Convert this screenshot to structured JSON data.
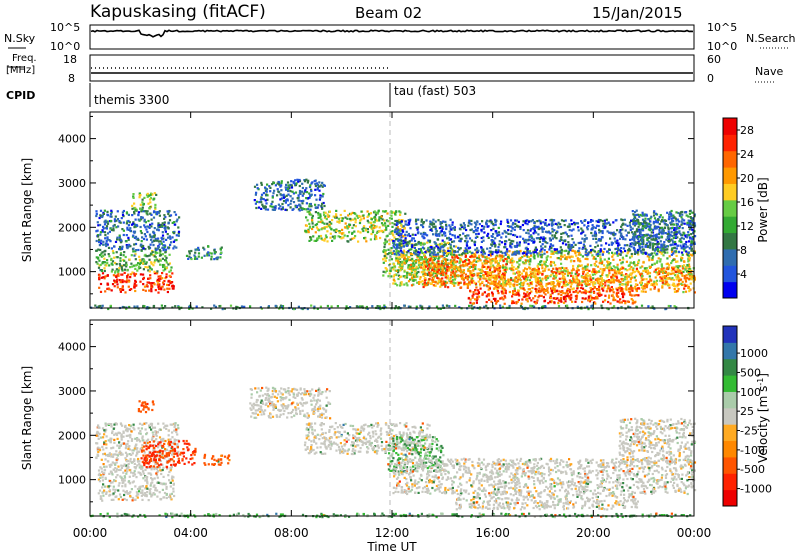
{
  "header": {
    "station": "Kapuskasing (fitACF)",
    "beam": "Beam 02",
    "date": "15/Jan/2015"
  },
  "side_labels": {
    "nsky": "N.Sky",
    "freq_line1": "Freq.",
    "freq_line2": "[MHz]",
    "cpid": "CPID",
    "nsearch": "N.Search",
    "nave": "Nave"
  },
  "noise_panel": {
    "left_ticks": [
      "10^5",
      "10^0"
    ],
    "right_ticks": [
      "10^5",
      "10^0"
    ]
  },
  "freq_panel": {
    "left_ticks": [
      "18",
      "8"
    ],
    "right_ticks": [
      "60",
      "0"
    ]
  },
  "cpid_panel": {
    "modes": [
      {
        "name": "themis 3300",
        "start_hour": 0
      },
      {
        "name": "tau (fast) 503",
        "start_hour": 12
      }
    ]
  },
  "chart_data": [
    {
      "type": "heatmap",
      "title": "Power",
      "xlabel": "Time UT",
      "ylabel": "Slant Range [km]",
      "x_ticks": [
        "00:00",
        "04:00",
        "08:00",
        "12:00",
        "16:00",
        "20:00",
        "00:00"
      ],
      "y_ticks": [
        "1000",
        "2000",
        "3000",
        "4000"
      ],
      "xlim_hours": [
        0,
        24
      ],
      "ylim_km": [
        180,
        4600
      ],
      "colorbar": {
        "label": "Power [dB]",
        "ticks": [
          "4",
          "8",
          "12",
          "16",
          "20",
          "24",
          "28"
        ],
        "range": [
          0,
          30
        ],
        "colors": [
          "#0000ee",
          "#2255dd",
          "#2f6db0",
          "#337744",
          "#33aa33",
          "#66cc44",
          "#ffcc22",
          "#ff9900",
          "#ff6600",
          "#ff2200",
          "#ee0000"
        ]
      },
      "regions": [
        {
          "t0": 0.3,
          "t1": 3.3,
          "r0": 550,
          "r1": 1000,
          "p": 26
        },
        {
          "t0": 0.2,
          "t1": 3.2,
          "r0": 1000,
          "r1": 1500,
          "p": 13
        },
        {
          "t0": 0.2,
          "t1": 3.5,
          "r0": 1500,
          "r1": 2400,
          "p": 7
        },
        {
          "t0": 1.6,
          "t1": 2.6,
          "r0": 2400,
          "r1": 2800,
          "p": 14
        },
        {
          "t0": 3.8,
          "t1": 5.2,
          "r0": 1300,
          "r1": 1600,
          "p": 9
        },
        {
          "t0": 6.5,
          "t1": 9.3,
          "r0": 2400,
          "r1": 3100,
          "p": 7
        },
        {
          "t0": 8.5,
          "t1": 12.5,
          "r0": 1700,
          "r1": 2400,
          "p": 15
        },
        {
          "t0": 11.6,
          "t1": 14.5,
          "r0": 900,
          "r1": 1700,
          "p": 14
        },
        {
          "t0": 12.0,
          "t1": 24.0,
          "r0": 700,
          "r1": 1500,
          "p": 17
        },
        {
          "t0": 13.2,
          "t1": 16.5,
          "r0": 650,
          "r1": 1400,
          "p": 22
        },
        {
          "t0": 16.0,
          "t1": 24.0,
          "r0": 550,
          "r1": 1100,
          "p": 21
        },
        {
          "t0": 15.0,
          "t1": 21.8,
          "r0": 300,
          "r1": 650,
          "p": 25
        },
        {
          "t0": 12.0,
          "t1": 24.0,
          "r0": 1400,
          "r1": 2200,
          "p": 6
        },
        {
          "t0": 21.5,
          "t1": 24.0,
          "r0": 1500,
          "r1": 2400,
          "p": 8
        },
        {
          "t0": 0.0,
          "t1": 24.0,
          "r0": 180,
          "r1": 260,
          "p": 10
        }
      ]
    },
    {
      "type": "heatmap",
      "title": "Velocity",
      "xlabel": "Time UT",
      "ylabel": "Slant Range [km]",
      "x_ticks": [
        "00:00",
        "04:00",
        "08:00",
        "12:00",
        "16:00",
        "20:00",
        "00:00"
      ],
      "y_ticks": [
        "1000",
        "2000",
        "3000",
        "4000"
      ],
      "xlim_hours": [
        0,
        24
      ],
      "ylim_km": [
        180,
        4600
      ],
      "colorbar": {
        "label": "Velocity [m s^-1]",
        "ticks": [
          "1000",
          "500",
          "100",
          "25",
          "-25",
          "-100",
          "-500",
          "-1000"
        ],
        "colors": [
          "#2233bb",
          "#3377aa",
          "#338844",
          "#33bb33",
          "#aaccaa",
          "#c8c8c0",
          "#ffaa22",
          "#ff8800",
          "#ff5500",
          "#ff2200",
          "#ee0000"
        ]
      },
      "regions": [
        {
          "t0": 0.3,
          "t1": 3.3,
          "r0": 550,
          "r1": 1500,
          "v": 0
        },
        {
          "t0": 0.2,
          "t1": 3.5,
          "r0": 1500,
          "r1": 2300,
          "v": 0
        },
        {
          "t0": 2.0,
          "t1": 4.2,
          "r0": 1300,
          "r1": 1900,
          "v": -300
        },
        {
          "t0": 1.9,
          "t1": 2.5,
          "r0": 2500,
          "r1": 2800,
          "v": -250
        },
        {
          "t0": 4.5,
          "t1": 5.5,
          "r0": 1350,
          "r1": 1600,
          "v": -200
        },
        {
          "t0": 6.3,
          "t1": 9.5,
          "r0": 2400,
          "r1": 3100,
          "v": 0
        },
        {
          "t0": 8.5,
          "t1": 13.5,
          "r0": 1600,
          "r1": 2300,
          "v": 0
        },
        {
          "t0": 11.8,
          "t1": 14.0,
          "r0": 1200,
          "r1": 2000,
          "v": 50
        },
        {
          "t0": 12.0,
          "t1": 24.0,
          "r0": 700,
          "r1": 1500,
          "v": 0
        },
        {
          "t0": 14.5,
          "t1": 21.8,
          "r0": 350,
          "r1": 700,
          "v": 0
        },
        {
          "t0": 21.0,
          "t1": 24.0,
          "r0": 1400,
          "r1": 2400,
          "v": 0
        },
        {
          "t0": 0.0,
          "t1": 24.0,
          "r0": 180,
          "r1": 260,
          "v": 60
        }
      ]
    }
  ]
}
